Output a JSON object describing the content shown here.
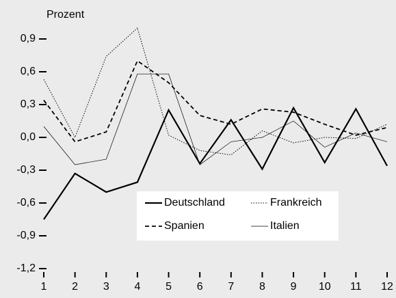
{
  "chart_data": {
    "type": "line",
    "ylabel": "Prozent",
    "x": [
      1,
      2,
      3,
      4,
      5,
      6,
      7,
      8,
      9,
      10,
      11,
      12
    ],
    "xlim": [
      1,
      12
    ],
    "xticks": [
      1,
      2,
      3,
      4,
      5,
      6,
      7,
      8,
      9,
      10,
      11,
      12
    ],
    "ylim": [
      -1.2,
      1.0
    ],
    "yticks": [
      {
        "value": -1.2,
        "label": "-1,2"
      },
      {
        "value": -0.9,
        "label": "-0,9"
      },
      {
        "value": -0.6,
        "label": "-0,6"
      },
      {
        "value": -0.3,
        "label": "-0,3"
      },
      {
        "value": 0,
        "label": "0,0"
      },
      {
        "value": 0.3,
        "label": "0,3"
      },
      {
        "value": 0.6,
        "label": "0,6"
      },
      {
        "value": 0.9,
        "label": "0,9"
      }
    ],
    "legend": "bottom",
    "series": [
      {
        "name": "Deutschland",
        "color": "#000000",
        "style": "solid",
        "values": [
          -0.75,
          -0.33,
          -0.5,
          -0.41,
          0.25,
          -0.24,
          0.16,
          -0.29,
          0.27,
          -0.23,
          0.26,
          -0.26
        ]
      },
      {
        "name": "Frankreich",
        "color": "#000000",
        "style": "dotted",
        "values": [
          0.53,
          0.0,
          0.74,
          1.0,
          0.02,
          -0.12,
          -0.16,
          0.06,
          -0.05,
          0.0,
          -0.01,
          0.12
        ]
      },
      {
        "name": "Spanien",
        "color": "#000000",
        "style": "dashed",
        "values": [
          0.34,
          -0.04,
          0.05,
          0.7,
          0.5,
          0.2,
          0.12,
          0.26,
          0.23,
          0.12,
          0.02,
          0.09
        ]
      },
      {
        "name": "Italien",
        "color": "#000000",
        "style": "thin",
        "values": [
          0.1,
          -0.25,
          -0.2,
          0.58,
          0.58,
          -0.25,
          -0.04,
          0.0,
          0.15,
          -0.09,
          0.04,
          -0.04
        ]
      }
    ]
  }
}
